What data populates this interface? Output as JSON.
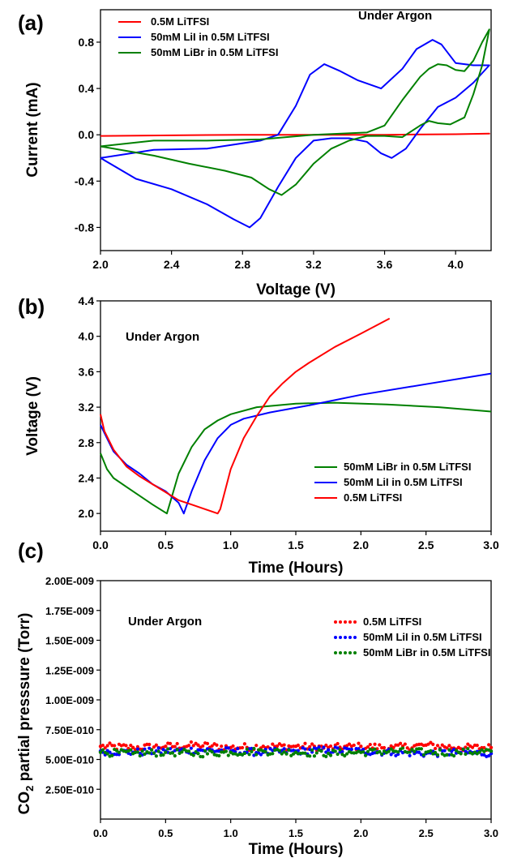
{
  "chart_data": [
    {
      "panel_label": "(a)",
      "type": "line",
      "annotation": "Under Argon",
      "xlabel": "Voltage (V)",
      "ylabel": "Current (mA)",
      "xlim": [
        2.0,
        4.2
      ],
      "ylim": [
        -1.0,
        1.08
      ],
      "xticks": [
        "2.0",
        "2.4",
        "2.8",
        "3.2",
        "3.6",
        "4.0"
      ],
      "yticks": [
        "-0.8",
        "-0.4",
        "0.0",
        "0.4",
        "0.8"
      ],
      "legend_position": "top-left",
      "grid": false,
      "series": [
        {
          "name": "0.5M LiTFSI",
          "color": "#ff0000",
          "x": [
            2.0,
            2.4,
            2.8,
            3.2,
            3.6,
            4.0,
            4.19,
            4.0,
            3.6,
            3.2,
            2.8,
            2.4,
            2.0
          ],
          "y": [
            -0.01,
            -0.005,
            0.0,
            0.0,
            0.0,
            0.005,
            0.01,
            0.005,
            0.0,
            0.0,
            0.0,
            -0.005,
            -0.01
          ]
        },
        {
          "name": "50mM LiI in 0.5M LiTFSI",
          "color": "#0000ff",
          "x": [
            2.0,
            2.3,
            2.6,
            2.9,
            3.0,
            3.1,
            3.18,
            3.26,
            3.35,
            3.45,
            3.58,
            3.7,
            3.78,
            3.87,
            3.92,
            4.0,
            4.1,
            4.19,
            4.1,
            4.0,
            3.9,
            3.8,
            3.72,
            3.64,
            3.58,
            3.5,
            3.4,
            3.3,
            3.2,
            3.1,
            3.0,
            2.9,
            2.84,
            2.75,
            2.6,
            2.4,
            2.2,
            2.0
          ],
          "y": [
            -0.2,
            -0.13,
            -0.12,
            -0.05,
            0.0,
            0.25,
            0.52,
            0.61,
            0.55,
            0.47,
            0.4,
            0.57,
            0.74,
            0.82,
            0.78,
            0.62,
            0.6,
            0.6,
            0.45,
            0.32,
            0.24,
            0.05,
            -0.12,
            -0.2,
            -0.16,
            -0.06,
            -0.03,
            -0.03,
            -0.05,
            -0.2,
            -0.45,
            -0.72,
            -0.8,
            -0.73,
            -0.6,
            -0.47,
            -0.38,
            -0.2
          ]
        },
        {
          "name": "50mM LiBr in 0.5M LiTFSI",
          "color": "#008000",
          "x": [
            2.0,
            2.3,
            2.6,
            2.9,
            3.2,
            3.5,
            3.6,
            3.7,
            3.8,
            3.85,
            3.9,
            3.95,
            4.0,
            4.05,
            4.1,
            4.15,
            4.19,
            4.15,
            4.1,
            4.05,
            3.97,
            3.9,
            3.85,
            3.8,
            3.7,
            3.6,
            3.5,
            3.4,
            3.3,
            3.2,
            3.1,
            3.02,
            2.95,
            2.85,
            2.7,
            2.5,
            2.3,
            2.0
          ],
          "y": [
            -0.1,
            -0.05,
            -0.05,
            -0.04,
            0.0,
            0.02,
            0.08,
            0.3,
            0.5,
            0.57,
            0.61,
            0.6,
            0.56,
            0.55,
            0.64,
            0.8,
            0.91,
            0.6,
            0.35,
            0.15,
            0.09,
            0.1,
            0.12,
            0.08,
            -0.02,
            -0.01,
            -0.01,
            -0.05,
            -0.12,
            -0.25,
            -0.43,
            -0.52,
            -0.47,
            -0.37,
            -0.31,
            -0.25,
            -0.18,
            -0.1
          ]
        }
      ]
    },
    {
      "panel_label": "(b)",
      "type": "line",
      "annotation": "Under Argon",
      "xlabel": "Time (Hours)",
      "ylabel": "Voltage (V)",
      "xlim": [
        0.0,
        3.0
      ],
      "ylim": [
        1.8,
        4.4
      ],
      "xticks": [
        "0.0",
        "0.5",
        "1.0",
        "1.5",
        "2.0",
        "2.5",
        "3.0"
      ],
      "yticks": [
        "2.0",
        "2.4",
        "2.8",
        "3.2",
        "3.6",
        "4.0",
        "4.4"
      ],
      "legend_position": "bottom-right",
      "grid": false,
      "series": [
        {
          "name": "50mM LiBr in 0.5M LiTFSI",
          "color": "#008000",
          "x": [
            0.0,
            0.05,
            0.1,
            0.2,
            0.3,
            0.4,
            0.51,
            0.55,
            0.6,
            0.7,
            0.8,
            0.9,
            1.0,
            1.2,
            1.5,
            1.8,
            2.2,
            2.6,
            3.0
          ],
          "y": [
            2.68,
            2.5,
            2.4,
            2.3,
            2.2,
            2.1,
            2.0,
            2.2,
            2.45,
            2.75,
            2.95,
            3.05,
            3.12,
            3.2,
            3.24,
            3.25,
            3.23,
            3.2,
            3.15
          ]
        },
        {
          "name": "50mM LiI in 0.5M LiTFSI",
          "color": "#0000ff",
          "x": [
            0.0,
            0.05,
            0.1,
            0.2,
            0.3,
            0.4,
            0.5,
            0.6,
            0.64,
            0.7,
            0.8,
            0.9,
            1.0,
            1.1,
            1.3,
            1.6,
            2.0,
            2.5,
            3.0
          ],
          "y": [
            3.0,
            2.85,
            2.7,
            2.55,
            2.45,
            2.33,
            2.25,
            2.12,
            2.0,
            2.25,
            2.6,
            2.85,
            3.0,
            3.07,
            3.14,
            3.22,
            3.34,
            3.46,
            3.58
          ]
        },
        {
          "name": "0.5M LiTFSI",
          "color": "#ff0000",
          "x": [
            0.0,
            0.03,
            0.1,
            0.2,
            0.3,
            0.4,
            0.5,
            0.6,
            0.7,
            0.8,
            0.9,
            0.92,
            1.0,
            1.1,
            1.2,
            1.3,
            1.4,
            1.5,
            1.6,
            1.8,
            2.0,
            2.22
          ],
          "y": [
            3.12,
            2.93,
            2.72,
            2.53,
            2.42,
            2.33,
            2.24,
            2.15,
            2.1,
            2.05,
            2.0,
            2.05,
            2.5,
            2.85,
            3.1,
            3.32,
            3.47,
            3.6,
            3.7,
            3.88,
            4.03,
            4.2
          ]
        }
      ]
    },
    {
      "panel_label": "(c)",
      "type": "scatter",
      "annotation": "Under Argon",
      "xlabel": "Time (Hours)",
      "ylabel_main": "CO",
      "ylabel_sub": "2",
      "ylabel_rest": " partial presssure (Torr)",
      "xlim": [
        0.0,
        3.0
      ],
      "ylim": [
        0.0,
        2e-09
      ],
      "xticks": [
        "0.0",
        "0.5",
        "1.0",
        "1.5",
        "2.0",
        "2.5",
        "3.0"
      ],
      "yticks": [
        "2.50E-010",
        "5.00E-010",
        "7.50E-010",
        "1.00E-009",
        "1.25E-009",
        "1.50E-009",
        "1.75E-009",
        "2.00E-009"
      ],
      "legend_position": "top-right",
      "grid": false,
      "series": [
        {
          "name": "0.5M LiTFSI",
          "color": "#ff0000",
          "x": [
            0.0,
            0.25,
            0.5,
            0.75,
            1.0,
            1.25,
            1.5,
            1.75,
            2.0,
            2.25,
            2.5,
            2.75,
            3.0
          ],
          "y": [
            6.1e-10,
            6e-10,
            6.1e-10,
            6.2e-10,
            6e-10,
            6.1e-10,
            6.1e-10,
            6e-10,
            6.1e-10,
            6e-10,
            6.2e-10,
            6e-10,
            6e-10
          ]
        },
        {
          "name": "50mM LiI in 0.5M LiTFSI",
          "color": "#0000ff",
          "x": [
            0.0,
            0.25,
            0.5,
            0.75,
            1.0,
            1.25,
            1.5,
            1.75,
            2.0,
            2.25,
            2.5,
            2.75,
            3.0
          ],
          "y": [
            5.7e-10,
            5.6e-10,
            5.7e-10,
            5.8e-10,
            5.7e-10,
            5.6e-10,
            5.7e-10,
            5.8e-10,
            5.7e-10,
            5.6e-10,
            5.5e-10,
            5.6e-10,
            5.5e-10
          ]
        },
        {
          "name": "50mM LiBr in 0.5M LiTFSI",
          "color": "#008000",
          "x": [
            0.0,
            0.25,
            0.5,
            0.75,
            1.0,
            1.25,
            1.5,
            1.75,
            2.0,
            2.25,
            2.5,
            2.75,
            3.0
          ],
          "y": [
            5.6e-10,
            5.5e-10,
            5.6e-10,
            5.5e-10,
            5.6e-10,
            5.7e-10,
            5.6e-10,
            5.5e-10,
            5.6e-10,
            5.7e-10,
            5.6e-10,
            5.6e-10,
            5.7e-10
          ]
        }
      ]
    }
  ]
}
